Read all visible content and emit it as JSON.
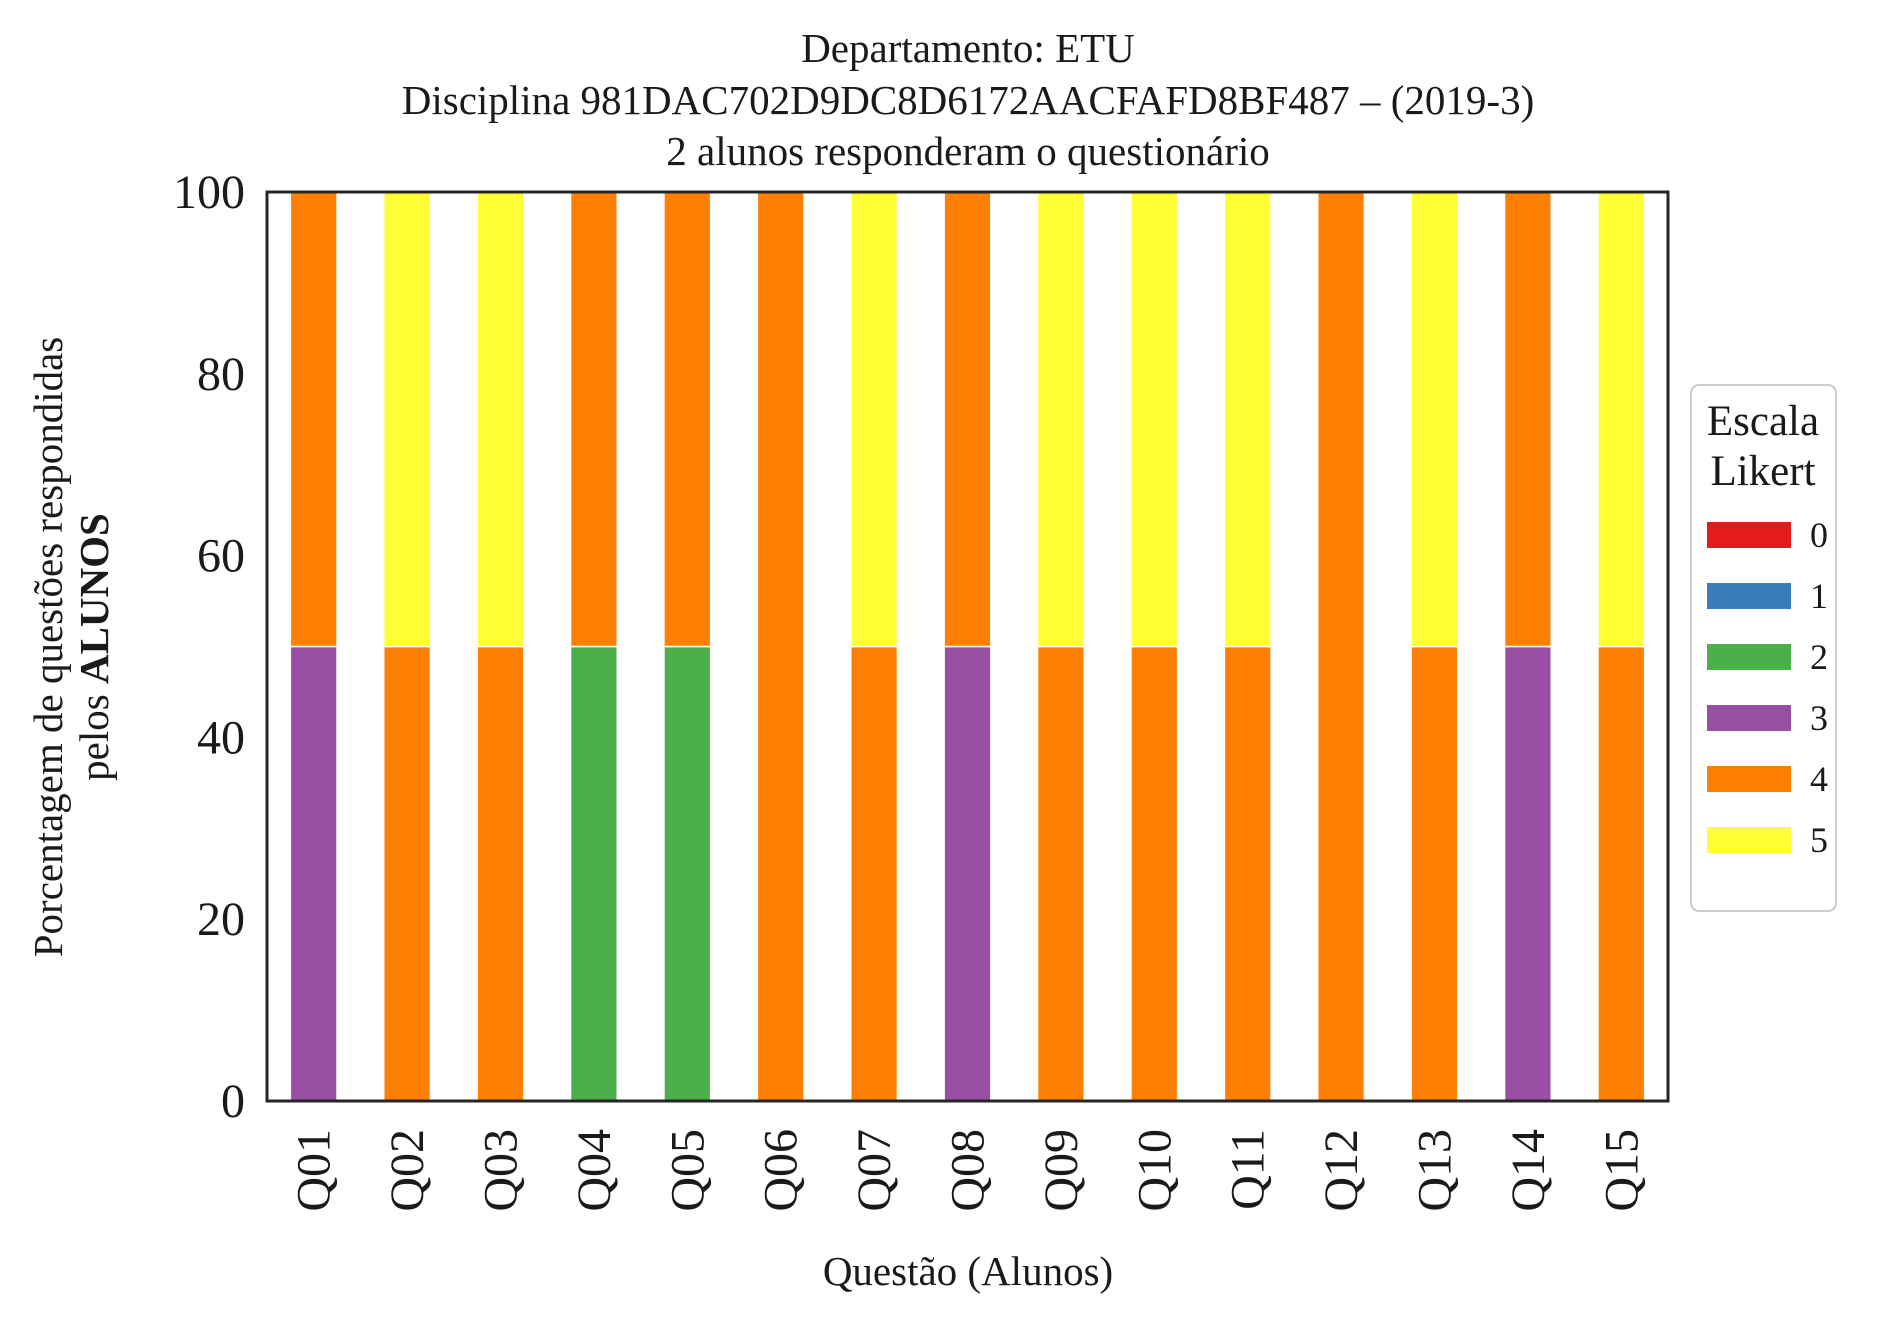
{
  "chart_data": {
    "type": "bar",
    "stacked": true,
    "title_lines": [
      "Departamento: ETU",
      "Disciplina 981DAC702D9DC8D6172AACFAFD8BF487 – (2019-3)",
      "2 alunos responderam o questionário"
    ],
    "xlabel": "Questão (Alunos)",
    "ylabel_line1": "Porcentagem de questões respondidas",
    "ylabel_line2_prefix": "pelos ",
    "ylabel_line2_bold": "ALUNOS",
    "ylim": [
      0,
      100
    ],
    "yticks": [
      "0",
      "20",
      "40",
      "60",
      "80",
      "100"
    ],
    "categories": [
      "Q01",
      "Q02",
      "Q03",
      "Q04",
      "Q05",
      "Q06",
      "Q07",
      "Q08",
      "Q09",
      "Q10",
      "Q11",
      "Q12",
      "Q13",
      "Q14",
      "Q15"
    ],
    "series": [
      {
        "name": "0",
        "color": "#e41a1c",
        "values": [
          0,
          0,
          0,
          0,
          0,
          0,
          0,
          0,
          0,
          0,
          0,
          0,
          0,
          0,
          0
        ]
      },
      {
        "name": "1",
        "color": "#377eb8",
        "values": [
          0,
          0,
          0,
          0,
          0,
          0,
          0,
          0,
          0,
          0,
          0,
          0,
          0,
          0,
          0
        ]
      },
      {
        "name": "2",
        "color": "#4daf4a",
        "values": [
          0,
          0,
          0,
          50,
          50,
          0,
          0,
          0,
          0,
          0,
          0,
          0,
          0,
          0,
          0
        ]
      },
      {
        "name": "3",
        "color": "#984ea3",
        "values": [
          50,
          0,
          0,
          0,
          0,
          0,
          0,
          50,
          0,
          0,
          0,
          0,
          0,
          50,
          0
        ]
      },
      {
        "name": "4",
        "color": "#ff7f00",
        "values": [
          50,
          50,
          50,
          50,
          50,
          100,
          50,
          50,
          50,
          50,
          50,
          100,
          50,
          50,
          50
        ]
      },
      {
        "name": "5",
        "color": "#ffff33",
        "values": [
          0,
          50,
          50,
          0,
          0,
          0,
          50,
          0,
          50,
          50,
          50,
          0,
          50,
          0,
          50
        ]
      }
    ],
    "legend": {
      "title_lines": [
        "Escala",
        "Likert"
      ],
      "placement": "right"
    },
    "grid": false
  }
}
